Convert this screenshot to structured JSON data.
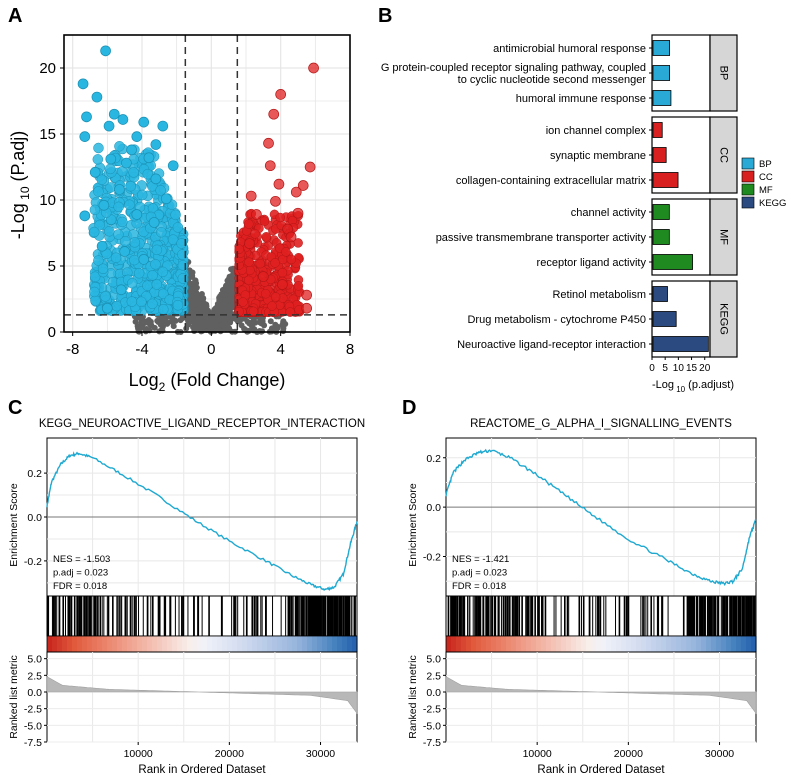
{
  "colors": {
    "down": "#29b6e0",
    "up": "#e02020",
    "ns": "#606060",
    "bp": "#29a9d6",
    "cc": "#d92020",
    "mf": "#1f8a1f",
    "kegg": "#2b4a80",
    "gsea_line": "#1fa9d0",
    "strip": "#d6d6d6"
  },
  "chart_data": [
    {
      "panel": "A",
      "type": "scatter",
      "title": "",
      "xlabel_main": "Log",
      "xlabel_sub": "2",
      "xlabel_rest": " (Fold Change)",
      "ylabel_main": "-Log",
      "ylabel_sub": " 10",
      "ylabel_rest": " (P.adj)",
      "xlim": [
        -8.5,
        8
      ],
      "ylim": [
        0,
        22.5
      ],
      "xticks": [
        -8,
        -4,
        0,
        4,
        8
      ],
      "yticks": [
        0,
        5,
        10,
        15,
        20
      ],
      "xtick_labels": [
        "-8",
        "-4",
        "0",
        "4",
        "8"
      ],
      "ytick_labels": [
        "0",
        "5",
        "10",
        "15",
        "20"
      ],
      "fc_cutoff": [
        -1.5,
        1.5
      ],
      "p_cutoff": 1.3,
      "highlight_down": [
        [
          -6.1,
          21.3
        ],
        [
          -7.4,
          18.8
        ],
        [
          -6.6,
          17.8
        ],
        [
          -5.6,
          16.5
        ],
        [
          -7.2,
          16.3
        ],
        [
          -5.1,
          16.1
        ],
        [
          -5.9,
          15.6
        ],
        [
          -3.9,
          15.9
        ],
        [
          -2.8,
          15.6
        ],
        [
          -4.3,
          14.8
        ],
        [
          -7.3,
          14.8
        ],
        [
          -3.2,
          14.2
        ],
        [
          -4.6,
          13.8
        ],
        [
          -3.6,
          13.2
        ],
        [
          -5.8,
          13.1
        ],
        [
          -2.2,
          12.6
        ],
        [
          -4.9,
          12.8
        ],
        [
          -6.7,
          12.1
        ],
        [
          -3.2,
          11.6
        ],
        [
          -5.3,
          10.8
        ],
        [
          -2.6,
          10.1
        ],
        [
          -6.2,
          9.6
        ],
        [
          -7.3,
          8.8
        ],
        [
          -4.3,
          8.9
        ],
        [
          -3.3,
          8.3
        ],
        [
          -6.3,
          6.5
        ],
        [
          -5.0,
          6.1
        ],
        [
          -3.9,
          5.5
        ],
        [
          -6.0,
          1.8
        ],
        [
          -5.2,
          3.2
        ]
      ],
      "highlight_up": [
        [
          5.9,
          20.0
        ],
        [
          4.0,
          18.0
        ],
        [
          3.6,
          16.5
        ],
        [
          3.3,
          14.3
        ],
        [
          5.7,
          12.5
        ],
        [
          3.4,
          12.6
        ],
        [
          3.9,
          11.2
        ],
        [
          5.3,
          11.1
        ],
        [
          4.9,
          10.6
        ],
        [
          2.3,
          10.3
        ],
        [
          3.7,
          9.9
        ],
        [
          5.0,
          9.0
        ],
        [
          2.6,
          8.9
        ],
        [
          4.4,
          7.8
        ],
        [
          4.6,
          7.2
        ],
        [
          2.2,
          6.7
        ],
        [
          4.1,
          3.6
        ],
        [
          5.5,
          2.8
        ],
        [
          5.5,
          1.8
        ],
        [
          3.0,
          4.2
        ]
      ]
    },
    {
      "panel": "B",
      "type": "bar",
      "xlabel_main": "-Log",
      "xlabel_sub": " 10",
      "xlabel_rest": " (p.adjust)",
      "xlim": [
        0,
        22
      ],
      "xticks": [
        0,
        5,
        10,
        15,
        20
      ],
      "xtick_labels": [
        "0",
        "5",
        "10",
        "15",
        "20"
      ],
      "groups": [
        {
          "name": "BP",
          "color_key": "bp",
          "terms": [
            {
              "label": [
                "antimicrobial humoral response"
              ],
              "value": 6.3
            },
            {
              "label": [
                "G protein-coupled receptor signaling pathway, coupled",
                "to cyclic nucleotide second messenger"
              ],
              "value": 6.3
            },
            {
              "label": [
                "humoral immune response"
              ],
              "value": 6.8
            }
          ]
        },
        {
          "name": "CC",
          "color_key": "cc",
          "terms": [
            {
              "label": [
                "ion channel complex"
              ],
              "value": 3.5
            },
            {
              "label": [
                "synaptic membrane"
              ],
              "value": 5.0
            },
            {
              "label": [
                "collagen-containing extracellular matrix"
              ],
              "value": 9.5
            }
          ]
        },
        {
          "name": "MF",
          "color_key": "mf",
          "terms": [
            {
              "label": [
                "channel activity"
              ],
              "value": 6.2
            },
            {
              "label": [
                "passive transmembrane transporter activity"
              ],
              "value": 6.2
            },
            {
              "label": [
                "receptor ligand activity"
              ],
              "value": 15.0
            }
          ]
        },
        {
          "name": "KEGG",
          "color_key": "kegg",
          "terms": [
            {
              "label": [
                "Retinol metabolism"
              ],
              "value": 5.5
            },
            {
              "label": [
                "Drug metabolism - cytochrome P450"
              ],
              "value": 8.8
            },
            {
              "label": [
                "Neuroactive ligand-receptor interaction"
              ],
              "value": 21.0
            }
          ]
        }
      ],
      "legend": [
        "BP",
        "CC",
        "MF",
        "KEGG"
      ]
    },
    {
      "panel": "C",
      "type": "line",
      "title": "KEGG_NEUROACTIVE_LIGAND_RECEPTOR_INTERACTION",
      "ylabel": "Enrichment Score",
      "ylabel2": "Ranked list metric",
      "xlabel": "Rank in Ordered Dataset",
      "xlim": [
        0,
        34000
      ],
      "ylim": [
        -0.36,
        0.36
      ],
      "yticks": [
        0.2,
        0.0,
        -0.2
      ],
      "ytick_labels": [
        "0.2",
        "0.0",
        "-0.2"
      ],
      "xticks": [
        10000,
        20000,
        30000
      ],
      "xtick_labels": [
        "10000",
        "20000",
        "30000"
      ],
      "metric_ticks": [
        5.0,
        2.5,
        0.0,
        -2.5,
        -5.0,
        -7.5
      ],
      "metric_tick_labels": [
        "5.0",
        "2.5",
        "0.0",
        "-2.5",
        "-5.0",
        "-7.5"
      ],
      "metric_ylim": [
        -7.5,
        6.0
      ],
      "es_curve": [
        [
          0,
          0.05
        ],
        [
          500,
          0.16
        ],
        [
          1500,
          0.24
        ],
        [
          2500,
          0.28
        ],
        [
          3500,
          0.29
        ],
        [
          5000,
          0.27
        ],
        [
          8000,
          0.2
        ],
        [
          12000,
          0.1
        ],
        [
          16000,
          -0.01
        ],
        [
          20000,
          -0.11
        ],
        [
          24000,
          -0.2
        ],
        [
          27000,
          -0.27
        ],
        [
          29000,
          -0.31
        ],
        [
          30500,
          -0.33
        ],
        [
          31500,
          -0.32
        ],
        [
          32500,
          -0.26
        ],
        [
          33300,
          -0.12
        ],
        [
          34000,
          -0.02
        ]
      ],
      "stats": [
        "NES = -1.503",
        "p.adj = 0.023",
        "FDR = 0.018"
      ],
      "seed": 7
    },
    {
      "panel": "D",
      "type": "line",
      "title": "REACTOME_G_ALPHA_I_SIGNALLING_EVENTS",
      "ylabel": "Enrichment Score",
      "ylabel2": "Ranked list metric",
      "xlabel": "Rank in Ordered Dataset",
      "xlim": [
        0,
        34000
      ],
      "ylim": [
        -0.36,
        0.28
      ],
      "yticks": [
        0.2,
        0.0,
        -0.2
      ],
      "ytick_labels": [
        "0.2",
        "0.0",
        "-0.2"
      ],
      "xticks": [
        10000,
        20000,
        30000
      ],
      "xtick_labels": [
        "10000",
        "20000",
        "30000"
      ],
      "metric_ticks": [
        5.0,
        2.5,
        0.0,
        -2.5,
        -5.0,
        -7.5
      ],
      "metric_tick_labels": [
        "5.0",
        "2.5",
        "0.0",
        "-2.5",
        "-5.0",
        "-7.5"
      ],
      "metric_ylim": [
        -7.5,
        6.0
      ],
      "es_curve": [
        [
          0,
          0.05
        ],
        [
          800,
          0.14
        ],
        [
          2000,
          0.19
        ],
        [
          3500,
          0.22
        ],
        [
          5000,
          0.23
        ],
        [
          7000,
          0.2
        ],
        [
          10000,
          0.13
        ],
        [
          13000,
          0.05
        ],
        [
          16000,
          -0.03
        ],
        [
          20000,
          -0.13
        ],
        [
          24000,
          -0.21
        ],
        [
          27000,
          -0.27
        ],
        [
          29000,
          -0.3
        ],
        [
          30500,
          -0.31
        ],
        [
          31500,
          -0.3
        ],
        [
          32500,
          -0.25
        ],
        [
          33300,
          -0.12
        ],
        [
          34000,
          -0.05
        ]
      ],
      "stats": [
        "NES = -1.421",
        "p.adj = 0.023",
        "FDR = 0.018"
      ],
      "seed": 13
    }
  ],
  "panel_labels": [
    "A",
    "B",
    "C",
    "D"
  ]
}
